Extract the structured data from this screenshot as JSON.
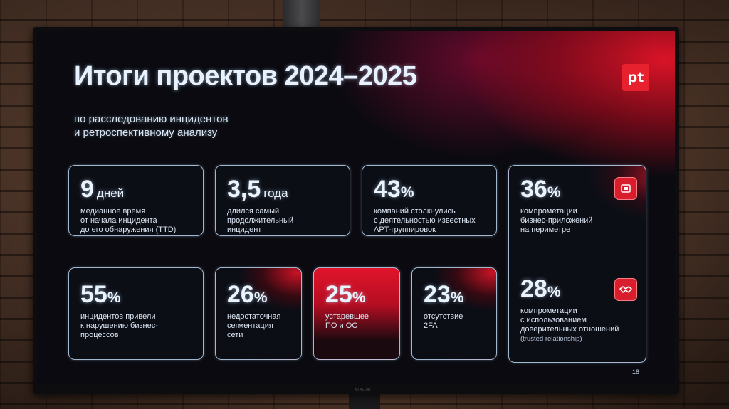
{
  "slide": {
    "title": "Итоги проектов 2024–2025",
    "subtitle_line1": "по расследованию инцидентов",
    "subtitle_line2": "и ретроспективному анализу",
    "logo": "pt",
    "page_number": "18",
    "tv_brand": "XIAOMI"
  },
  "stats": [
    {
      "value": "9",
      "unit": "дней",
      "desc": [
        "медианное время",
        "от начала инцидента",
        "до его обнаружения (TTD)"
      ]
    },
    {
      "value": "3,5",
      "unit": "года",
      "desc": [
        "длился самый",
        "продолжительный",
        "инцидент"
      ]
    },
    {
      "value": "43",
      "unit": "%",
      "desc": [
        "компаний столкнулись",
        "с деятельностью известных",
        "APT-группировок"
      ]
    },
    {
      "value": "36",
      "unit": "%",
      "desc": [
        "компрометации",
        "бизнес-приложений",
        "на периметре"
      ]
    },
    {
      "value": "55",
      "unit": "%",
      "desc": [
        "инцидентов привели",
        "к нарушению бизнес-",
        "процессов"
      ]
    },
    {
      "value": "26",
      "unit": "%",
      "desc": [
        "недостаточная",
        "сегментация",
        "сети"
      ]
    },
    {
      "value": "25",
      "unit": "%",
      "desc": [
        "устаревшее",
        "ПО и ОС"
      ]
    },
    {
      "value": "23",
      "unit": "%",
      "desc": [
        "отсутствие",
        "2FA"
      ]
    },
    {
      "value": "28",
      "unit": "%",
      "desc": [
        "компрометации",
        "с использованием",
        "доверительных отношений"
      ],
      "note": "(trusted relationship)"
    }
  ],
  "icons": {
    "app_icon": "application-icon",
    "handshake_icon": "handshake-icon"
  },
  "colors": {
    "accent": "#e8212e",
    "text": "#e6f0ff",
    "background": "#0a0a10"
  }
}
